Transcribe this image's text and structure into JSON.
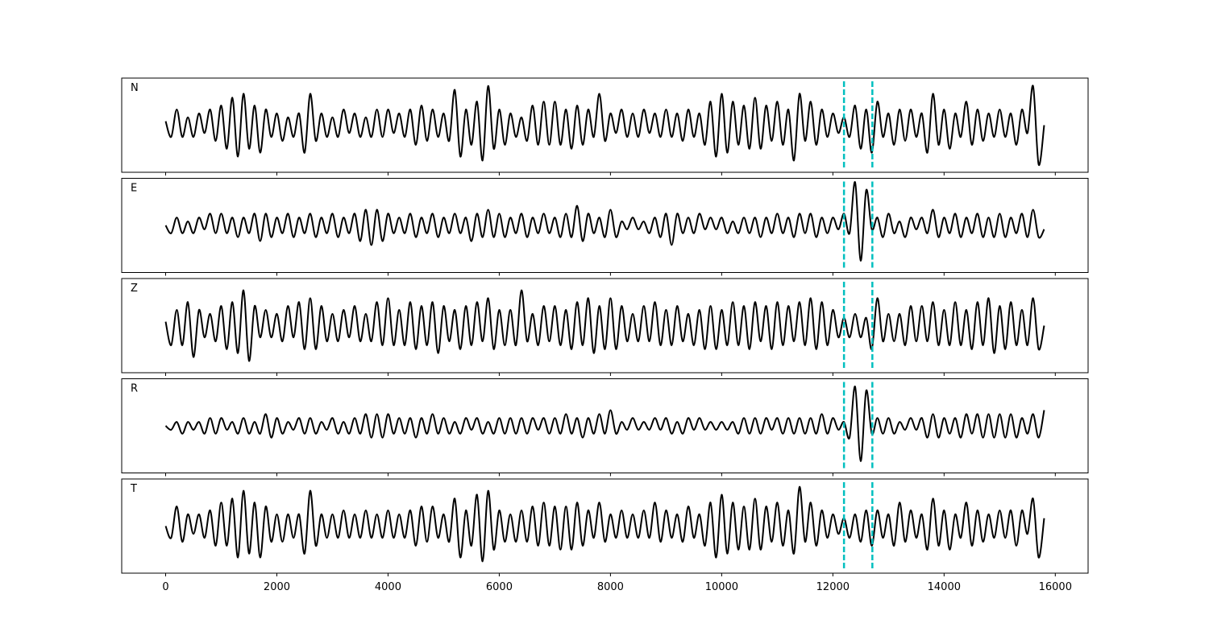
{
  "chart_data": {
    "type": "line",
    "x": [
      0,
      100,
      200,
      300,
      400,
      500,
      600,
      700,
      800,
      900,
      1000,
      1100,
      1200,
      1300,
      1400,
      1500,
      1600,
      1700,
      1800,
      1900,
      2000,
      2100,
      2200,
      2300,
      2400,
      2500,
      2600,
      2700,
      2800,
      2900,
      3000,
      3100,
      3200,
      3300,
      3400,
      3500,
      3600,
      3700,
      3800,
      3900,
      4000,
      4100,
      4200,
      4300,
      4400,
      4500,
      4600,
      4700,
      4800,
      4900,
      5000,
      5100,
      5200,
      5300,
      5400,
      5500,
      5600,
      5700,
      5800,
      5900,
      6000,
      6100,
      6200,
      6300,
      6400,
      6500,
      6600,
      6700,
      6800,
      6900,
      7000,
      7100,
      7200,
      7300,
      7400,
      7500,
      7600,
      7700,
      7800,
      7900,
      8000,
      8100,
      8200,
      8300,
      8400,
      8500,
      8600,
      8700,
      8800,
      8900,
      9000,
      9100,
      9200,
      9300,
      9400,
      9500,
      9600,
      9700,
      9800,
      9900,
      10000,
      10100,
      10200,
      10300,
      10400,
      10500,
      10600,
      10700,
      10800,
      10900,
      11000,
      11100,
      11200,
      11300,
      11400,
      11500,
      11600,
      11700,
      11800,
      11900,
      12000,
      12100,
      12200,
      12300,
      12400,
      12500,
      12600,
      12700,
      12800,
      12900,
      13000,
      13100,
      13200,
      13300,
      13400,
      13500,
      13600,
      13700,
      13800,
      13900,
      14000,
      14100,
      14200,
      14300,
      14400,
      14500,
      14600,
      14700,
      14800,
      14900,
      15000,
      15100,
      15200,
      15300,
      15400,
      15500,
      15600,
      15700,
      15800
    ],
    "series": [
      {
        "name": "N",
        "color": "#000000",
        "values": [
          0.1,
          -0.3,
          0.4,
          -0.3,
          0.2,
          -0.3,
          0.3,
          -0.2,
          0.4,
          -0.4,
          0.5,
          -0.6,
          0.7,
          -0.8,
          0.8,
          -0.6,
          0.5,
          -0.7,
          0.4,
          -0.3,
          0.3,
          -0.4,
          0.2,
          -0.3,
          0.3,
          -0.7,
          0.8,
          -0.4,
          0.3,
          -0.3,
          0.2,
          -0.3,
          0.4,
          -0.2,
          0.3,
          -0.3,
          0.2,
          -0.3,
          0.4,
          -0.3,
          0.4,
          -0.2,
          0.3,
          -0.3,
          0.4,
          -0.5,
          0.5,
          -0.4,
          0.4,
          -0.3,
          0.3,
          -0.4,
          0.9,
          -0.8,
          0.4,
          -0.5,
          0.6,
          -0.9,
          1.0,
          -0.6,
          0.4,
          -0.5,
          0.3,
          -0.3,
          0.2,
          -0.4,
          0.5,
          -0.5,
          0.6,
          -0.5,
          0.6,
          -0.5,
          0.4,
          -0.6,
          0.5,
          -0.5,
          0.4,
          -0.3,
          0.8,
          -0.4,
          0.3,
          -0.2,
          0.4,
          -0.3,
          0.3,
          -0.3,
          0.4,
          -0.2,
          0.3,
          -0.3,
          0.4,
          -0.3,
          0.3,
          -0.4,
          0.4,
          -0.3,
          0.3,
          -0.5,
          0.6,
          -0.8,
          0.8,
          -0.7,
          0.6,
          -0.5,
          0.5,
          -0.6,
          0.7,
          -0.6,
          0.5,
          -0.4,
          0.6,
          -0.5,
          0.4,
          -0.9,
          0.8,
          -0.4,
          0.6,
          -0.5,
          0.4,
          -0.3,
          0.3,
          -0.2,
          0.2,
          -0.3,
          0.5,
          -0.6,
          0.4,
          -0.7,
          0.6,
          -0.3,
          0.3,
          -0.5,
          0.4,
          -0.4,
          0.4,
          -0.3,
          0.3,
          -0.7,
          0.8,
          -0.5,
          0.4,
          -0.6,
          0.3,
          -0.3,
          0.6,
          -0.5,
          0.4,
          -0.4,
          0.3,
          -0.3,
          0.4,
          -0.3,
          0.3,
          -0.5,
          0.4,
          -0.2,
          1.0,
          -1.0,
          0.0
        ]
      },
      {
        "name": "E",
        "color": "#000000",
        "values": [
          0.0,
          -0.2,
          0.2,
          -0.2,
          0.1,
          -0.2,
          0.2,
          -0.1,
          0.3,
          -0.2,
          0.3,
          -0.2,
          0.2,
          -0.3,
          0.2,
          -0.2,
          0.3,
          -0.4,
          0.3,
          -0.3,
          0.2,
          -0.2,
          0.3,
          -0.3,
          0.2,
          -0.2,
          0.3,
          -0.3,
          0.2,
          -0.2,
          0.3,
          -0.3,
          0.2,
          -0.2,
          0.3,
          -0.4,
          0.4,
          -0.5,
          0.4,
          -0.4,
          0.3,
          -0.2,
          0.2,
          -0.2,
          0.3,
          -0.3,
          0.2,
          -0.2,
          0.3,
          -0.3,
          0.2,
          -0.2,
          0.3,
          -0.2,
          0.2,
          -0.4,
          0.3,
          -0.3,
          0.4,
          -0.3,
          0.3,
          -0.3,
          0.2,
          -0.2,
          0.3,
          -0.3,
          0.2,
          -0.2,
          0.3,
          -0.2,
          0.2,
          -0.3,
          0.3,
          -0.3,
          0.5,
          -0.4,
          0.3,
          -0.2,
          0.2,
          -0.3,
          0.4,
          -0.3,
          0.1,
          -0.1,
          0.2,
          -0.1,
          0.1,
          -0.2,
          0.2,
          -0.3,
          0.3,
          -0.5,
          0.3,
          -0.2,
          0.2,
          -0.2,
          0.3,
          -0.1,
          0.2,
          -0.1,
          0.2,
          -0.2,
          0.1,
          -0.2,
          0.2,
          -0.2,
          0.2,
          -0.3,
          0.2,
          -0.2,
          0.3,
          -0.2,
          0.2,
          -0.3,
          0.3,
          -0.2,
          0.3,
          -0.3,
          0.2,
          -0.2,
          0.2,
          -0.1,
          0.3,
          -0.2,
          1.1,
          -0.9,
          0.9,
          -0.1,
          0.2,
          -0.3,
          0.3,
          -0.2,
          0.1,
          -0.3,
          0.2,
          -0.1,
          0.2,
          -0.2,
          0.4,
          -0.3,
          0.2,
          -0.2,
          0.3,
          -0.3,
          0.2,
          -0.2,
          0.3,
          -0.3,
          0.2,
          -0.3,
          0.3,
          -0.3,
          0.2,
          -0.2,
          0.3,
          -0.3,
          0.4,
          -0.3,
          -0.1
        ]
      },
      {
        "name": "Z",
        "color": "#000000",
        "values": [
          0.1,
          -0.5,
          0.4,
          -0.5,
          0.6,
          -0.8,
          0.4,
          -0.3,
          0.3,
          -0.4,
          0.5,
          -0.6,
          0.6,
          -0.7,
          0.9,
          -0.9,
          0.5,
          -0.3,
          0.4,
          -0.3,
          0.3,
          -0.4,
          0.5,
          -0.3,
          0.6,
          -0.6,
          0.7,
          -0.6,
          0.5,
          -0.4,
          0.3,
          -0.4,
          0.4,
          -0.3,
          0.5,
          -0.4,
          0.3,
          -0.4,
          0.6,
          -0.5,
          0.7,
          -0.5,
          0.4,
          -0.5,
          0.6,
          -0.6,
          0.5,
          -0.5,
          0.6,
          -0.7,
          0.5,
          -0.4,
          0.4,
          -0.6,
          0.5,
          -0.5,
          0.6,
          -0.4,
          0.7,
          -0.6,
          0.4,
          -0.5,
          0.4,
          -0.5,
          0.9,
          -0.4,
          0.3,
          -0.5,
          0.5,
          -0.4,
          0.5,
          -0.5,
          0.4,
          -0.6,
          0.6,
          -0.5,
          0.7,
          -0.7,
          0.5,
          -0.6,
          0.7,
          -0.6,
          0.5,
          -0.4,
          0.3,
          -0.4,
          0.5,
          -0.4,
          0.6,
          -0.5,
          0.4,
          -0.5,
          0.5,
          -0.4,
          0.3,
          -0.5,
          0.4,
          -0.6,
          0.5,
          -0.6,
          0.4,
          -0.5,
          0.6,
          -0.5,
          0.5,
          -0.6,
          0.6,
          -0.4,
          0.5,
          -0.6,
          0.6,
          -0.5,
          0.5,
          -0.4,
          0.6,
          -0.5,
          0.7,
          -0.6,
          0.6,
          -0.5,
          0.4,
          -0.3,
          0.2,
          -0.3,
          0.3,
          -0.3,
          0.2,
          -0.6,
          0.7,
          -0.4,
          0.3,
          -0.4,
          0.3,
          -0.5,
          0.5,
          -0.4,
          0.5,
          -0.4,
          0.6,
          -0.5,
          0.4,
          -0.5,
          0.6,
          -0.5,
          0.4,
          -0.6,
          0.6,
          -0.5,
          0.7,
          -0.7,
          0.5,
          -0.6,
          0.6,
          -0.5,
          0.4,
          -0.5,
          0.7,
          -0.6,
          0.0
        ]
      },
      {
        "name": "R",
        "color": "#000000",
        "values": [
          0.0,
          -0.1,
          0.1,
          -0.2,
          0.1,
          -0.1,
          0.1,
          -0.2,
          0.2,
          -0.2,
          0.2,
          -0.1,
          0.1,
          -0.2,
          0.2,
          -0.2,
          0.1,
          -0.2,
          0.3,
          -0.3,
          0.2,
          -0.2,
          0.1,
          -0.1,
          0.2,
          -0.2,
          0.2,
          -0.2,
          0.1,
          -0.1,
          0.2,
          -0.2,
          0.1,
          -0.2,
          0.2,
          -0.2,
          0.3,
          -0.3,
          0.3,
          -0.3,
          0.3,
          -0.2,
          0.2,
          -0.2,
          0.2,
          -0.3,
          0.2,
          -0.2,
          0.3,
          -0.2,
          0.2,
          -0.2,
          0.1,
          -0.2,
          0.2,
          -0.1,
          0.2,
          -0.2,
          0.1,
          -0.2,
          0.2,
          -0.2,
          0.2,
          -0.2,
          0.2,
          -0.2,
          0.2,
          -0.1,
          0.2,
          -0.2,
          0.2,
          -0.2,
          0.3,
          -0.2,
          0.2,
          -0.3,
          0.2,
          -0.2,
          0.3,
          -0.2,
          0.4,
          -0.2,
          0.1,
          -0.1,
          0.2,
          -0.1,
          0.1,
          -0.1,
          0.2,
          -0.1,
          0.2,
          -0.2,
          0.1,
          -0.2,
          0.2,
          -0.1,
          0.2,
          -0.1,
          0.1,
          -0.1,
          0.1,
          -0.1,
          0.1,
          -0.2,
          0.2,
          -0.2,
          0.2,
          -0.2,
          0.2,
          -0.1,
          0.2,
          -0.2,
          0.2,
          -0.2,
          0.2,
          -0.2,
          0.2,
          -0.2,
          0.3,
          -0.2,
          0.2,
          -0.1,
          0.1,
          -0.3,
          1.0,
          -0.9,
          0.9,
          -0.2,
          0.2,
          -0.2,
          0.2,
          -0.2,
          0.1,
          -0.1,
          0.2,
          -0.1,
          0.2,
          -0.3,
          0.3,
          -0.3,
          0.2,
          -0.2,
          0.2,
          -0.3,
          0.3,
          -0.2,
          0.3,
          -0.3,
          0.3,
          -0.3,
          0.3,
          -0.3,
          0.3,
          -0.3,
          0.2,
          -0.2,
          0.3,
          -0.3,
          0.4
        ]
      },
      {
        "name": "T",
        "color": "#000000",
        "values": [
          0.0,
          -0.3,
          0.5,
          -0.4,
          0.3,
          -0.2,
          0.3,
          -0.3,
          0.4,
          -0.5,
          0.6,
          -0.5,
          0.7,
          -0.8,
          0.9,
          -0.7,
          0.6,
          -0.8,
          0.5,
          -0.4,
          0.3,
          -0.4,
          0.3,
          -0.3,
          0.3,
          -0.7,
          0.9,
          -0.5,
          0.3,
          -0.3,
          0.3,
          -0.3,
          0.4,
          -0.3,
          0.3,
          -0.3,
          0.4,
          -0.3,
          0.3,
          -0.3,
          0.4,
          -0.3,
          0.3,
          -0.3,
          0.4,
          -0.5,
          0.5,
          -0.4,
          0.5,
          -0.3,
          0.3,
          -0.4,
          0.7,
          -0.8,
          0.4,
          -0.5,
          0.8,
          -0.9,
          0.9,
          -0.6,
          0.4,
          -0.4,
          0.3,
          -0.4,
          0.4,
          -0.4,
          0.5,
          -0.5,
          0.6,
          -0.5,
          0.5,
          -0.6,
          0.5,
          -0.6,
          0.6,
          -0.5,
          0.4,
          -0.3,
          0.6,
          -0.4,
          0.3,
          -0.3,
          0.4,
          -0.3,
          0.3,
          -0.3,
          0.4,
          -0.3,
          0.6,
          -0.4,
          0.4,
          -0.3,
          0.3,
          -0.4,
          0.5,
          -0.3,
          0.3,
          -0.5,
          0.6,
          -0.8,
          0.8,
          -0.7,
          0.6,
          -0.6,
          0.5,
          -0.6,
          0.7,
          -0.6,
          0.5,
          -0.4,
          0.6,
          -0.5,
          0.4,
          -0.7,
          1.0,
          -0.4,
          0.6,
          -0.5,
          0.4,
          -0.3,
          0.3,
          -0.2,
          0.2,
          -0.3,
          0.3,
          -0.4,
          0.4,
          -0.5,
          0.4,
          -0.3,
          0.3,
          -0.5,
          0.6,
          -0.4,
          0.4,
          -0.3,
          0.3,
          -0.6,
          0.7,
          -0.5,
          0.4,
          -0.6,
          0.3,
          -0.3,
          0.6,
          -0.5,
          0.4,
          -0.4,
          0.3,
          -0.3,
          0.4,
          -0.3,
          0.4,
          -0.5,
          0.4,
          -0.2,
          0.7,
          -0.8,
          0.2
        ]
      }
    ],
    "xlim": [
      -790,
      16590
    ],
    "xticks": [
      0,
      2000,
      4000,
      6000,
      8000,
      10000,
      12000,
      14000,
      16000
    ],
    "ylim": [
      -1.2,
      1.2
    ],
    "vlines": [
      12200,
      12710
    ],
    "vline_color": "#00bfbf",
    "vline_dashed": true
  }
}
